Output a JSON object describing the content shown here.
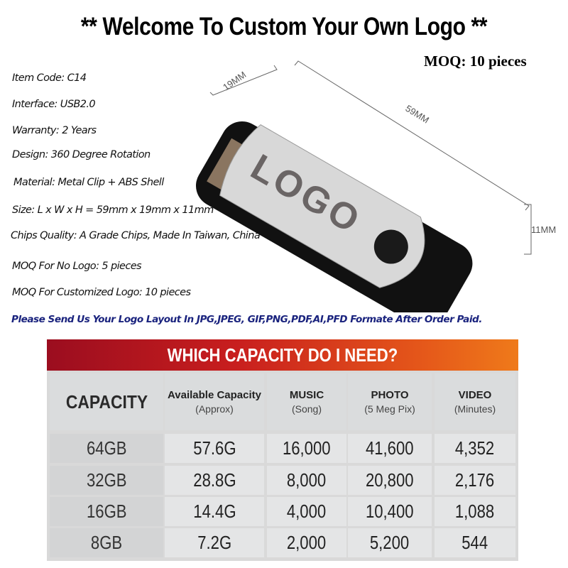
{
  "header": {
    "title": "** Welcome To Custom Your Own Logo **",
    "moq": "MOQ: 10 pieces"
  },
  "specs": [
    "Item Code: C14",
    "Interface: USB2.0",
    "Warranty: 2 Years",
    "Design: 360 Degree Rotation",
    "Material: Metal Clip + ABS Shell",
    "Size: L x W x H = 59mm x 19mm x 11mm",
    "Chips Quality: A Grade Chips, Made In Taiwan, China",
    "MOQ For No Logo: 5 pieces",
    "MOQ For Customized Logo: 10 pieces"
  ],
  "note": "Please Send Us Your Logo Layout In JPG,JPEG, GIF,PNG,PDF,AI,PFD Formate After Order Paid.",
  "product": {
    "logo_text": "LOGO",
    "dim_width": "19MM",
    "dim_length": "59MM",
    "dim_height": "11MM"
  },
  "table": {
    "title": "WHICH CAPACITY DO I NEED?",
    "headers": [
      {
        "main": "CAPACITY",
        "sub": ""
      },
      {
        "main": "Available Capacity",
        "sub": "(Approx)"
      },
      {
        "main": "MUSIC",
        "sub": "(Song)"
      },
      {
        "main": "PHOTO",
        "sub": "(5 Meg Pix)"
      },
      {
        "main": "VIDEO",
        "sub": "(Minutes)"
      }
    ],
    "rows": [
      [
        "64GB",
        "57.6G",
        "16,000",
        "41,600",
        "4,352"
      ],
      [
        "32GB",
        "28.8G",
        "8,000",
        "20,800",
        "2,176"
      ],
      [
        "16GB",
        "14.4G",
        "4,000",
        "10,400",
        "1,088"
      ],
      [
        "8GB",
        "7.2G",
        "2,000",
        "5,200",
        "544"
      ]
    ]
  },
  "colors": {
    "note": "#1a237e",
    "band_start": "#9b0d1f",
    "band_end": "#ef7a1a"
  }
}
